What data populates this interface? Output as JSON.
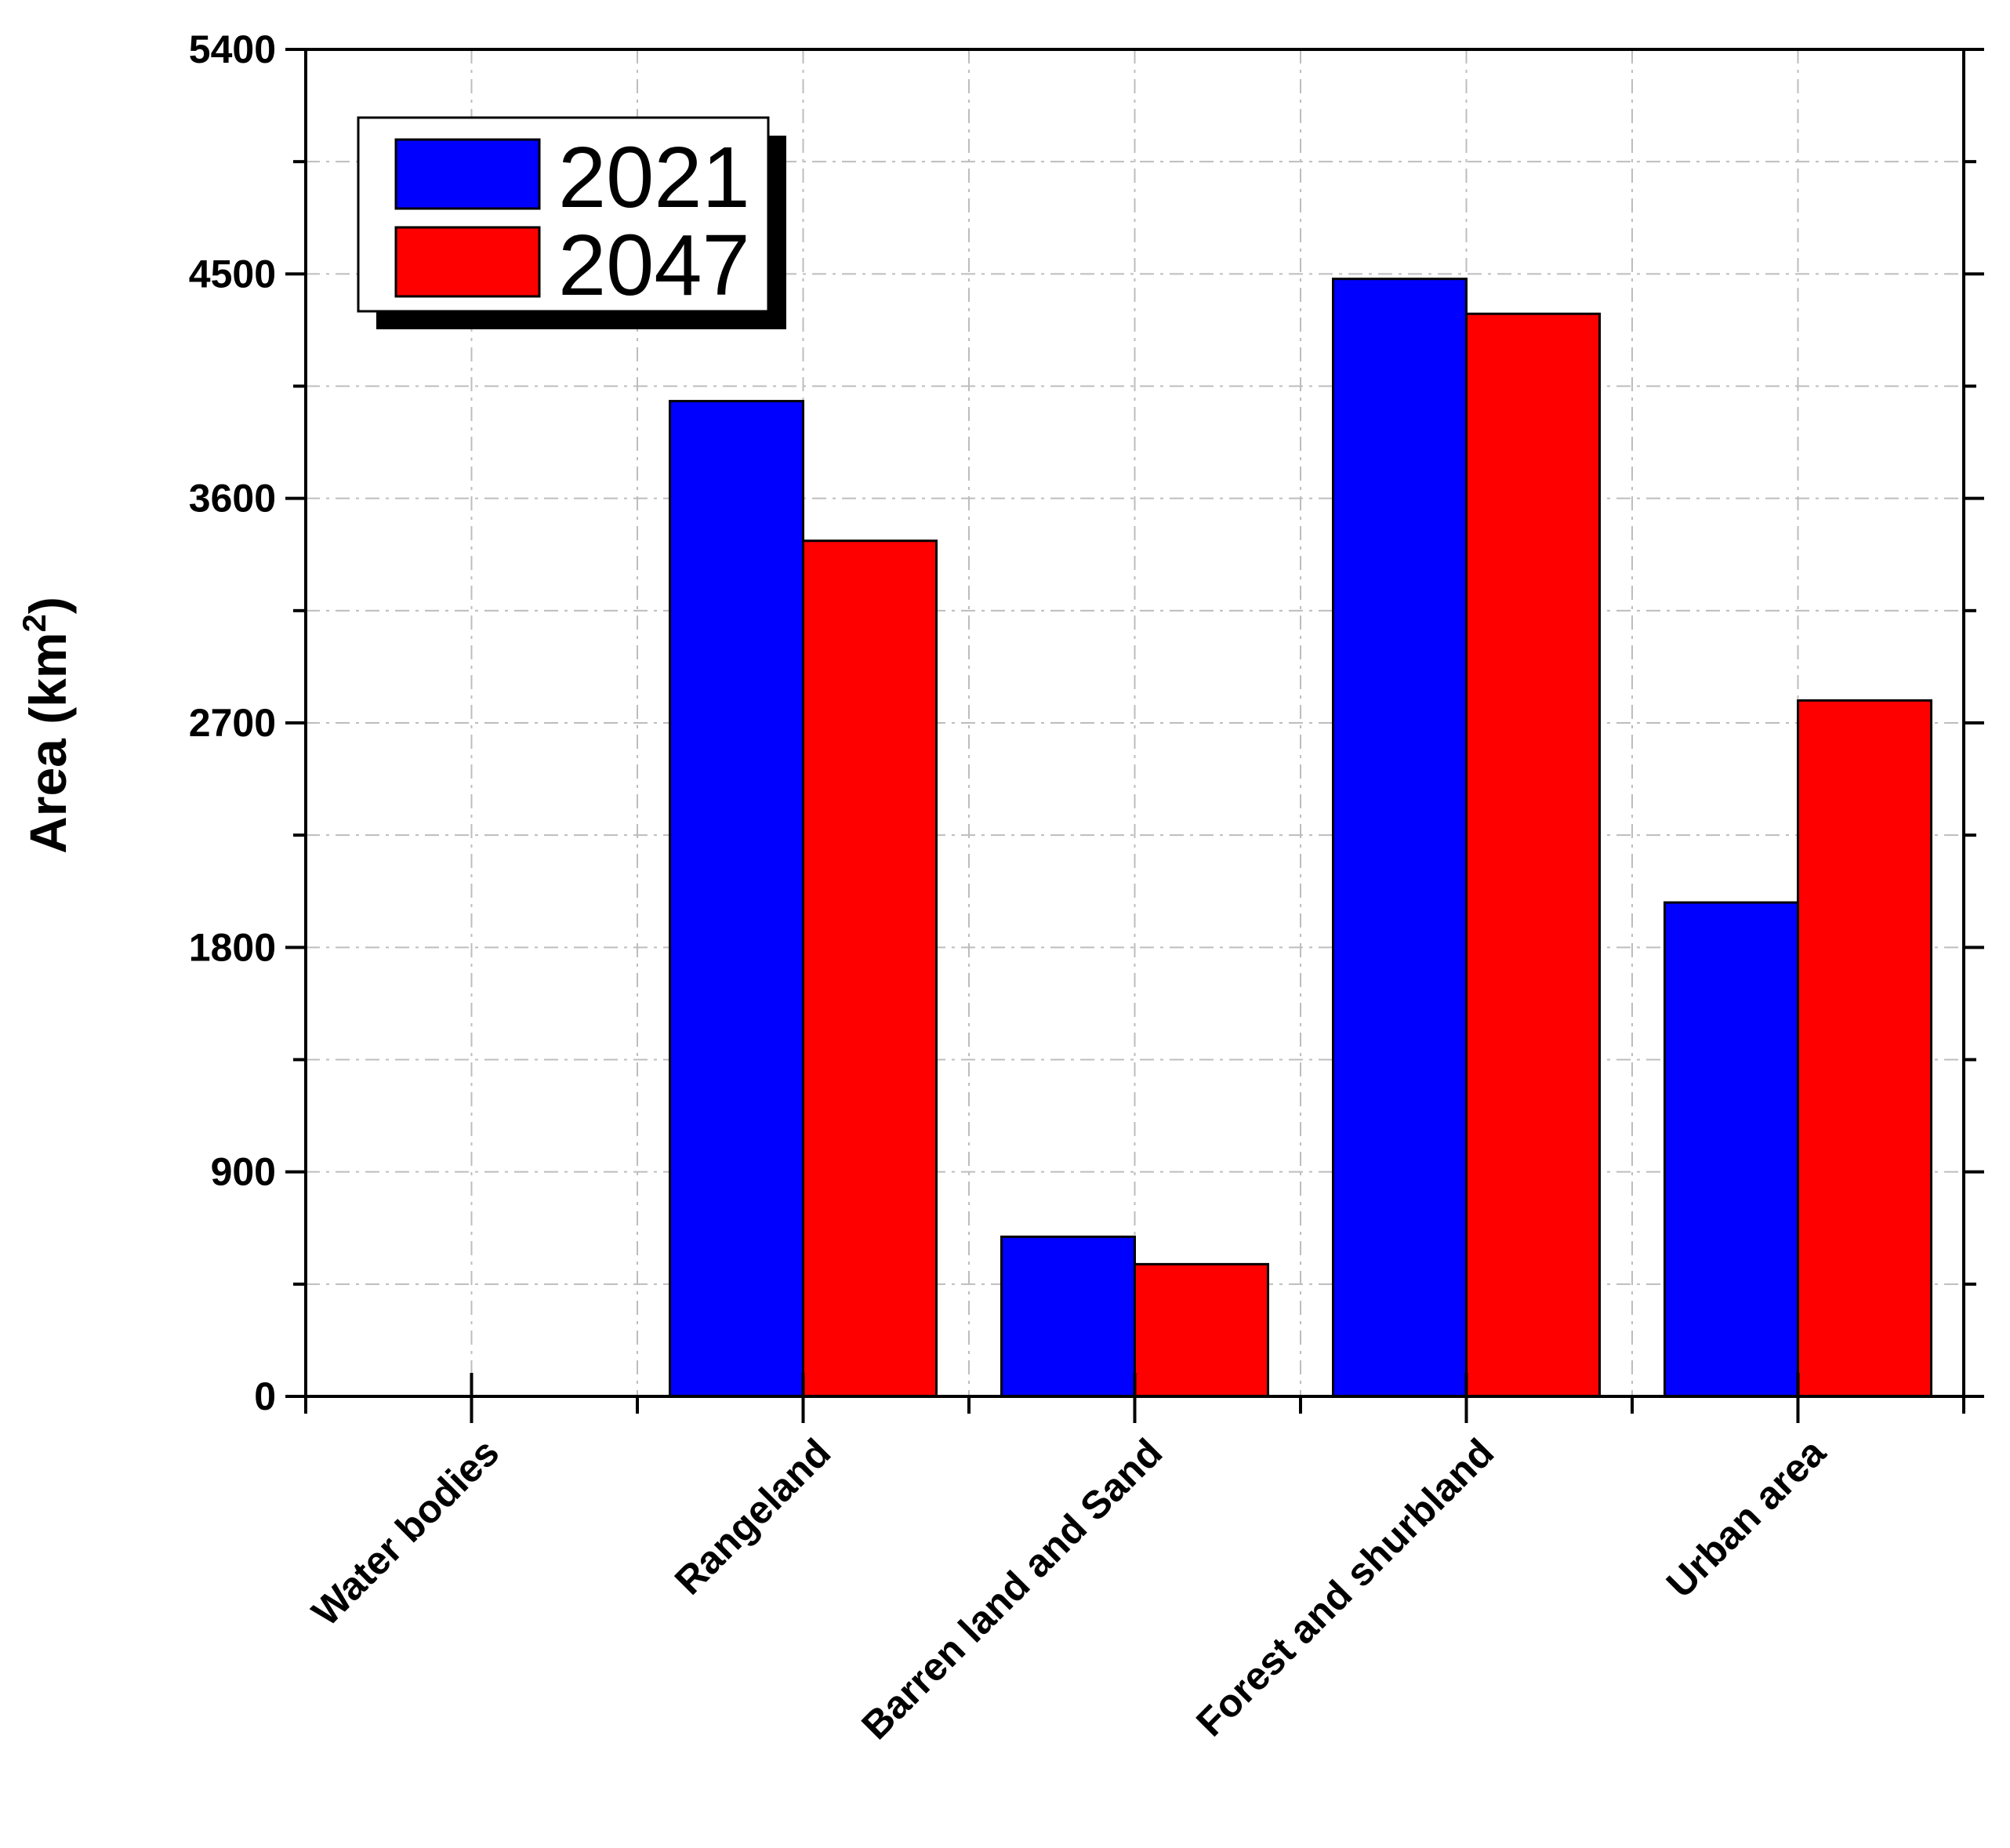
{
  "chart_data": {
    "type": "bar",
    "title": "",
    "xlabel": "",
    "ylabel": "Area (km",
    "ylabel_superscript": "2",
    "ylabel_suffix": ")",
    "categories": [
      "Water bodies",
      "Rangeland",
      "Barren land and Sand",
      "Forest and shurbland",
      "Urban area"
    ],
    "series": [
      {
        "name": "2021",
        "color": "#0000ff",
        "values": [
          0,
          3990,
          640,
          4480,
          1980
        ]
      },
      {
        "name": "2047",
        "color": "#ff0000",
        "values": [
          0,
          3430,
          530,
          4340,
          2790
        ]
      }
    ],
    "ylim": [
      0,
      5400
    ],
    "yticks": [
      "0",
      "900",
      "1800",
      "2700",
      "3600",
      "4500",
      "5400"
    ],
    "grid": true,
    "legend_position": "top-left"
  }
}
